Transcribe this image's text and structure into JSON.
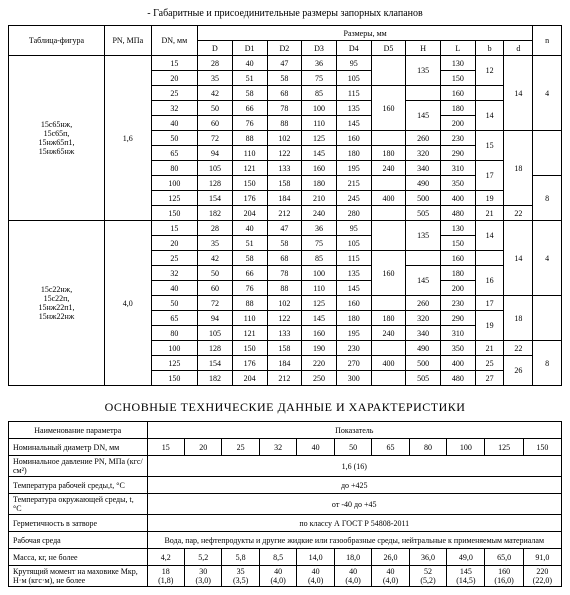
{
  "title1": "- Габаритные и присоединительные размеры запорных клапанов",
  "title2": "ОСНОВНЫЕ ТЕХНИЧЕСКИЕ ДАННЫЕ И ХАРАКТЕРИСТИКИ",
  "t1_headers": {
    "col_tab": "Таблица-фигура",
    "col_pn": "PN, МПа",
    "col_dn": "DN, мм",
    "col_sizes": "Размеры, мм",
    "col_n": "n",
    "D": "D",
    "D1": "D1",
    "D2": "D2",
    "D3": "D3",
    "D4": "D4",
    "D5": "D5",
    "H": "H",
    "L": "L",
    "b": "b",
    "d": "d"
  },
  "group1": {
    "name": "15с65нж,\n15с65п,\n15нж65п1,\n15нж65нж",
    "pn": "1,6",
    "rows": [
      {
        "dn": "15",
        "D": "28",
        "D1": "40",
        "D2": "47",
        "D3": "36",
        "D4": "95",
        "D5": "",
        "H": "135",
        "L": "130",
        "b": "12",
        "d": "14",
        "n": ""
      },
      {
        "dn": "20",
        "D": "35",
        "D1": "51",
        "D2": "58",
        "D3": "75",
        "D4": "105",
        "D5": "",
        "H": "",
        "L": "150",
        "b": "",
        "d": "",
        "n": ""
      },
      {
        "dn": "25",
        "D": "42",
        "D1": "58",
        "D2": "68",
        "D3": "85",
        "D4": "115",
        "D5": "160",
        "H": "",
        "L": "160",
        "b": "",
        "d": "",
        "n": "4"
      },
      {
        "dn": "32",
        "D": "50",
        "D1": "66",
        "D2": "78",
        "D3": "100",
        "D4": "135",
        "D5": "",
        "H": "145",
        "L": "180",
        "b": "14",
        "d": "",
        "n": ""
      },
      {
        "dn": "40",
        "D": "60",
        "D1": "76",
        "D2": "88",
        "D3": "110",
        "D4": "145",
        "D5": "",
        "H": "",
        "L": "200",
        "b": "",
        "d": "",
        "n": ""
      },
      {
        "dn": "50",
        "D": "72",
        "D1": "88",
        "D2": "102",
        "D3": "125",
        "D4": "160",
        "D5": "",
        "H": "260",
        "L": "230",
        "b": "15",
        "d": "18",
        "n": ""
      },
      {
        "dn": "65",
        "D": "94",
        "D1": "110",
        "D2": "122",
        "D3": "145",
        "D4": "180",
        "D5": "180",
        "H": "320",
        "L": "290",
        "b": "",
        "d": "",
        "n": ""
      },
      {
        "dn": "80",
        "D": "105",
        "D1": "121",
        "D2": "133",
        "D3": "160",
        "D4": "195",
        "D5": "240",
        "H": "340",
        "L": "310",
        "b": "17",
        "d": "",
        "n": ""
      },
      {
        "dn": "100",
        "D": "128",
        "D1": "150",
        "D2": "158",
        "D3": "180",
        "D4": "215",
        "D5": "",
        "H": "490",
        "L": "350",
        "b": "",
        "d": "",
        "n": "8"
      },
      {
        "dn": "125",
        "D": "154",
        "D1": "176",
        "D2": "184",
        "D3": "210",
        "D4": "245",
        "D5": "400",
        "H": "500",
        "L": "400",
        "b": "19",
        "d": "",
        "n": ""
      },
      {
        "dn": "150",
        "D": "182",
        "D1": "204",
        "D2": "212",
        "D3": "240",
        "D4": "280",
        "D5": "",
        "H": "505",
        "L": "480",
        "b": "21",
        "d": "22",
        "n": ""
      }
    ]
  },
  "group2": {
    "name": "15с22нж,\n15с22п,\n15нж22п1,\n15нж22нж",
    "pn": "4,0",
    "rows": [
      {
        "dn": "15",
        "D": "28",
        "D1": "40",
        "D2": "47",
        "D3": "36",
        "D4": "95",
        "D5": "",
        "H": "135",
        "L": "130",
        "b": "14",
        "d": "14",
        "n": ""
      },
      {
        "dn": "20",
        "D": "35",
        "D1": "51",
        "D2": "58",
        "D3": "75",
        "D4": "105",
        "D5": "",
        "H": "",
        "L": "150",
        "b": "",
        "d": "",
        "n": ""
      },
      {
        "dn": "25",
        "D": "42",
        "D1": "58",
        "D2": "68",
        "D3": "85",
        "D4": "115",
        "D5": "160",
        "H": "",
        "L": "160",
        "b": "",
        "d": "",
        "n": "4"
      },
      {
        "dn": "32",
        "D": "50",
        "D1": "66",
        "D2": "78",
        "D3": "100",
        "D4": "135",
        "D5": "",
        "H": "145",
        "L": "180",
        "b": "16",
        "d": "",
        "n": ""
      },
      {
        "dn": "40",
        "D": "60",
        "D1": "76",
        "D2": "88",
        "D3": "110",
        "D4": "145",
        "D5": "",
        "H": "",
        "L": "200",
        "b": "",
        "d": "",
        "n": ""
      },
      {
        "dn": "50",
        "D": "72",
        "D1": "88",
        "D2": "102",
        "D3": "125",
        "D4": "160",
        "D5": "",
        "H": "260",
        "L": "230",
        "b": "17",
        "d": "18",
        "n": ""
      },
      {
        "dn": "65",
        "D": "94",
        "D1": "110",
        "D2": "122",
        "D3": "145",
        "D4": "180",
        "D5": "180",
        "H": "320",
        "L": "290",
        "b": "19",
        "d": "",
        "n": ""
      },
      {
        "dn": "80",
        "D": "105",
        "D1": "121",
        "D2": "133",
        "D3": "160",
        "D4": "195",
        "D5": "240",
        "H": "340",
        "L": "310",
        "b": "",
        "d": "",
        "n": ""
      },
      {
        "dn": "100",
        "D": "128",
        "D1": "150",
        "D2": "158",
        "D3": "190",
        "D4": "230",
        "D5": "",
        "H": "490",
        "L": "350",
        "b": "21",
        "d": "22",
        "n": "8"
      },
      {
        "dn": "125",
        "D": "154",
        "D1": "176",
        "D2": "184",
        "D3": "220",
        "D4": "270",
        "D5": "400",
        "H": "500",
        "L": "400",
        "b": "25",
        "d": "26",
        "n": ""
      },
      {
        "dn": "150",
        "D": "182",
        "D1": "204",
        "D2": "212",
        "D3": "250",
        "D4": "300",
        "D5": "",
        "H": "505",
        "L": "480",
        "b": "27",
        "d": "26",
        "n": ""
      }
    ]
  },
  "t2": {
    "h_param": "Наименование параметра",
    "h_val": "Показатель",
    "rows": [
      {
        "label": "Номинальный диаметр DN, мм",
        "vals": [
          "15",
          "20",
          "25",
          "32",
          "40",
          "50",
          "65",
          "80",
          "100",
          "125",
          "150"
        ]
      },
      {
        "label": "Номинальное давление PN, МПа (кгс/см²)",
        "span": "1,6 (16)"
      },
      {
        "label": "Температура рабочей среды,t, °С",
        "span": "до +425"
      },
      {
        "label": "Температура окружающей среды, t, °С",
        "span": "от -40 до +45"
      },
      {
        "label": "Герметичность в затворе",
        "span": "по классу А ГОСТ Р 54808-2011"
      },
      {
        "label": "Рабочая среда",
        "span": "Вода, пар, нефтепродукты и другие жидкие или газообразные среды, нейтральные к применяемым материалам"
      },
      {
        "label": "Масса, кг, не более",
        "vals": [
          "4,2",
          "5,2",
          "5,8",
          "8,5",
          "14,0",
          "18,0",
          "26,0",
          "36,0",
          "49,0",
          "65,0",
          "91,0"
        ]
      },
      {
        "label": "Крутящий момент на маховике Мкр, Н·м (кгс·м), не более",
        "vals": [
          "18\n(1,8)",
          "30\n(3,0)",
          "35\n(3,5)",
          "40\n(4,0)",
          "40\n(4,0)",
          "40\n(4,0)",
          "40\n(4,0)",
          "52\n(5,2)",
          "145\n(14,5)",
          "160\n(16,0)",
          "220\n(22,0)"
        ]
      }
    ]
  }
}
